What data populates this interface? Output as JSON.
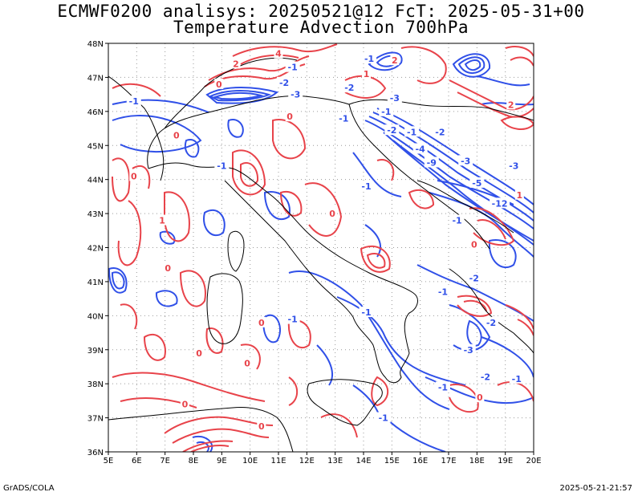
{
  "header": {
    "title_line1": "ECMWF0200 analisys: 20250521@12 FcT: 2025-05-31+00",
    "title_line2": "Temperature Advection 700hPa"
  },
  "footer": {
    "left": "GrADS/COLA",
    "right": "2025-05-21-21:57"
  },
  "map": {
    "lon_range": [
      5,
      20
    ],
    "lat_range": [
      36,
      48
    ],
    "lon_ticks": [
      "5E",
      "6E",
      "7E",
      "8E",
      "9E",
      "10E",
      "11E",
      "12E",
      "13E",
      "14E",
      "15E",
      "16E",
      "17E",
      "18E",
      "19E",
      "20E"
    ],
    "lat_ticks": [
      "36N",
      "37N",
      "38N",
      "39N",
      "40N",
      "41N",
      "42N",
      "43N",
      "44N",
      "45N",
      "46N",
      "47N",
      "48N"
    ],
    "colors": {
      "positive": "#e8434a",
      "negative": "#3050e8",
      "coast": "#000000",
      "grid": "#9a9a9a"
    },
    "contour_labels": [
      {
        "text": "-1",
        "lon": 5.9,
        "lat": 46.3,
        "sign": "neg"
      },
      {
        "text": "-1",
        "lon": 11.5,
        "lat": 47.3,
        "sign": "neg"
      },
      {
        "text": "-2",
        "lon": 11.2,
        "lat": 46.85,
        "sign": "neg"
      },
      {
        "text": "-3",
        "lon": 11.6,
        "lat": 46.5,
        "sign": "neg"
      },
      {
        "text": "-1",
        "lon": 14.2,
        "lat": 47.55,
        "sign": "neg"
      },
      {
        "text": "-2",
        "lon": 13.5,
        "lat": 46.7,
        "sign": "neg"
      },
      {
        "text": "-1",
        "lon": 13.3,
        "lat": 45.8,
        "sign": "neg"
      },
      {
        "text": "-3",
        "lon": 15.1,
        "lat": 46.4,
        "sign": "neg"
      },
      {
        "text": "-1",
        "lon": 14.8,
        "lat": 46.0,
        "sign": "neg"
      },
      {
        "text": "-2",
        "lon": 15.0,
        "lat": 45.45,
        "sign": "neg"
      },
      {
        "text": "-1",
        "lon": 15.7,
        "lat": 45.4,
        "sign": "neg"
      },
      {
        "text": "-2",
        "lon": 16.7,
        "lat": 45.4,
        "sign": "neg"
      },
      {
        "text": "-4",
        "lon": 16.0,
        "lat": 44.9,
        "sign": "neg"
      },
      {
        "text": "-3",
        "lon": 17.6,
        "lat": 44.55,
        "sign": "neg"
      },
      {
        "text": "-9",
        "lon": 16.4,
        "lat": 44.5,
        "sign": "neg"
      },
      {
        "text": "-5",
        "lon": 18.0,
        "lat": 43.9,
        "sign": "neg"
      },
      {
        "text": "-3",
        "lon": 19.3,
        "lat": 44.4,
        "sign": "neg"
      },
      {
        "text": "-12",
        "lon": 18.8,
        "lat": 43.3,
        "sign": "neg"
      },
      {
        "text": "-1",
        "lon": 14.1,
        "lat": 43.8,
        "sign": "neg"
      },
      {
        "text": "-1",
        "lon": 17.3,
        "lat": 42.8,
        "sign": "neg"
      },
      {
        "text": "-1",
        "lon": 9.0,
        "lat": 44.4,
        "sign": "neg"
      },
      {
        "text": "-1",
        "lon": 11.5,
        "lat": 39.9,
        "sign": "neg"
      },
      {
        "text": "-1",
        "lon": 14.1,
        "lat": 40.1,
        "sign": "neg"
      },
      {
        "text": "-2",
        "lon": 17.9,
        "lat": 41.1,
        "sign": "neg"
      },
      {
        "text": "-1",
        "lon": 16.8,
        "lat": 40.7,
        "sign": "neg"
      },
      {
        "text": "-2",
        "lon": 18.5,
        "lat": 39.8,
        "sign": "neg"
      },
      {
        "text": "-3",
        "lon": 17.7,
        "lat": 39.0,
        "sign": "neg"
      },
      {
        "text": "-2",
        "lon": 18.3,
        "lat": 38.2,
        "sign": "neg"
      },
      {
        "text": "-1",
        "lon": 19.4,
        "lat": 38.15,
        "sign": "neg"
      },
      {
        "text": "-1",
        "lon": 16.8,
        "lat": 37.9,
        "sign": "neg"
      },
      {
        "text": "-1",
        "lon": 14.7,
        "lat": 37.0,
        "sign": "neg"
      },
      {
        "text": "2",
        "lon": 15.1,
        "lat": 47.5,
        "sign": "pos"
      },
      {
        "text": "1",
        "lon": 14.1,
        "lat": 47.1,
        "sign": "pos"
      },
      {
        "text": "4",
        "lon": 11.0,
        "lat": 47.7,
        "sign": "pos"
      },
      {
        "text": "2",
        "lon": 9.5,
        "lat": 47.4,
        "sign": "pos"
      },
      {
        "text": "0",
        "lon": 8.9,
        "lat": 46.8,
        "sign": "pos"
      },
      {
        "text": "0",
        "lon": 11.4,
        "lat": 45.85,
        "sign": "pos"
      },
      {
        "text": "0",
        "lon": 5.9,
        "lat": 44.1,
        "sign": "pos"
      },
      {
        "text": "0",
        "lon": 7.4,
        "lat": 45.3,
        "sign": "pos"
      },
      {
        "text": "1",
        "lon": 6.9,
        "lat": 42.8,
        "sign": "pos"
      },
      {
        "text": "0",
        "lon": 7.1,
        "lat": 41.4,
        "sign": "pos"
      },
      {
        "text": "0",
        "lon": 10.4,
        "lat": 39.8,
        "sign": "pos"
      },
      {
        "text": "0",
        "lon": 12.9,
        "lat": 43.0,
        "sign": "pos"
      },
      {
        "text": "2",
        "lon": 19.2,
        "lat": 46.2,
        "sign": "pos"
      },
      {
        "text": "1",
        "lon": 19.5,
        "lat": 43.55,
        "sign": "pos"
      },
      {
        "text": "0",
        "lon": 17.9,
        "lat": 42.1,
        "sign": "pos"
      },
      {
        "text": "0",
        "lon": 8.2,
        "lat": 38.9,
        "sign": "pos"
      },
      {
        "text": "0",
        "lon": 7.7,
        "lat": 37.4,
        "sign": "pos"
      },
      {
        "text": "0",
        "lon": 10.4,
        "lat": 36.75,
        "sign": "pos"
      },
      {
        "text": "0",
        "lon": 18.1,
        "lat": 37.6,
        "sign": "pos"
      },
      {
        "text": "0",
        "lon": 9.9,
        "lat": 38.6,
        "sign": "pos"
      }
    ]
  }
}
